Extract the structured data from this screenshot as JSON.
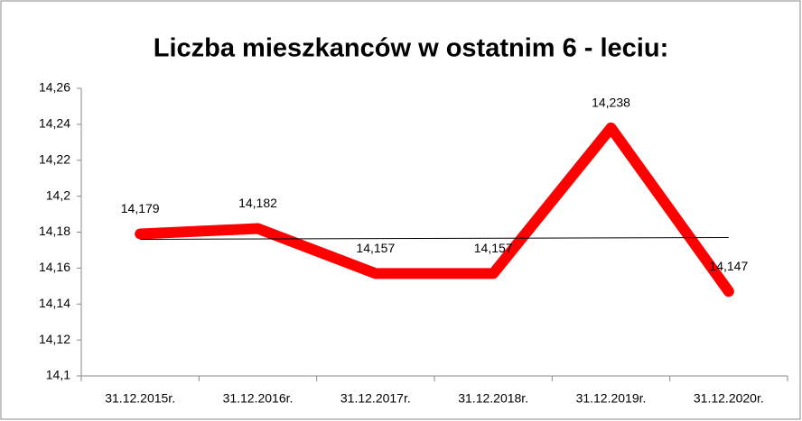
{
  "chart_data": {
    "type": "line",
    "title": "Liczba mieszkanców w ostatnim 6 - leciu:",
    "categories": [
      "31.12.2015r.",
      "31.12.2016r.",
      "31.12.2017r.",
      "31.12.2018r.",
      "31.12.2019r.",
      "31.12.2020r."
    ],
    "series": [
      {
        "color": "#ff0000",
        "values": [
          14.179,
          14.182,
          14.157,
          14.157,
          14.238,
          14.147
        ],
        "value_labels": [
          "14,179",
          "14,182",
          "14,157",
          "14,157",
          "14,238",
          "14,147"
        ]
      }
    ],
    "trendline": {
      "color": "#000000",
      "values": [
        14.176,
        14.177
      ]
    },
    "ylim": [
      14.1,
      14.26
    ],
    "yticks": [
      {
        "value": 14.1,
        "label": "14,1"
      },
      {
        "value": 14.12,
        "label": "14,12"
      },
      {
        "value": 14.14,
        "label": "14,14"
      },
      {
        "value": 14.16,
        "label": "14,16"
      },
      {
        "value": 14.18,
        "label": "14,18"
      },
      {
        "value": 14.2,
        "label": "14,2"
      },
      {
        "value": 14.22,
        "label": "14,22"
      },
      {
        "value": 14.24,
        "label": "14,24"
      },
      {
        "value": 14.26,
        "label": "14,26"
      }
    ]
  }
}
